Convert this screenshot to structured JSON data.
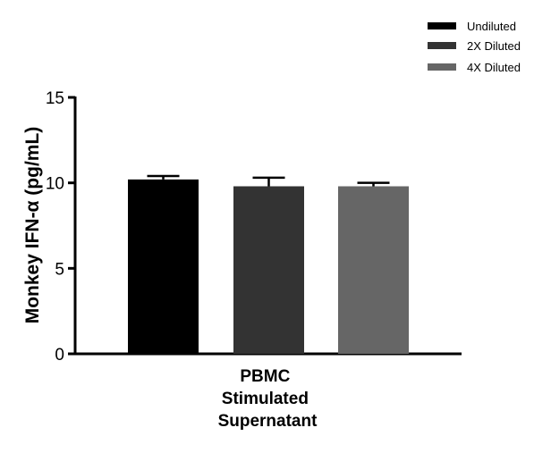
{
  "chart_data": {
    "type": "bar",
    "title": "",
    "xlabel": "",
    "ylabel": "Monkey IFN-α (pg/mL)",
    "categories": [
      "PBMC Stimulated Supernatant"
    ],
    "category_label_lines": [
      "PBMC",
      "Stimulated",
      "Supernatant"
    ],
    "ylim": [
      0,
      15
    ],
    "yticks": [
      0,
      5,
      10,
      15
    ],
    "grid": false,
    "legend_position": "top-right",
    "series": [
      {
        "name": "Undiluted",
        "values": [
          10.2
        ],
        "error": [
          0.2
        ],
        "color": "#000000"
      },
      {
        "name": "2X Diluted",
        "values": [
          9.8
        ],
        "error": [
          0.5
        ],
        "color": "#333333"
      },
      {
        "name": "4X Diluted",
        "values": [
          9.8
        ],
        "error": [
          0.2
        ],
        "color": "#666666"
      }
    ]
  }
}
